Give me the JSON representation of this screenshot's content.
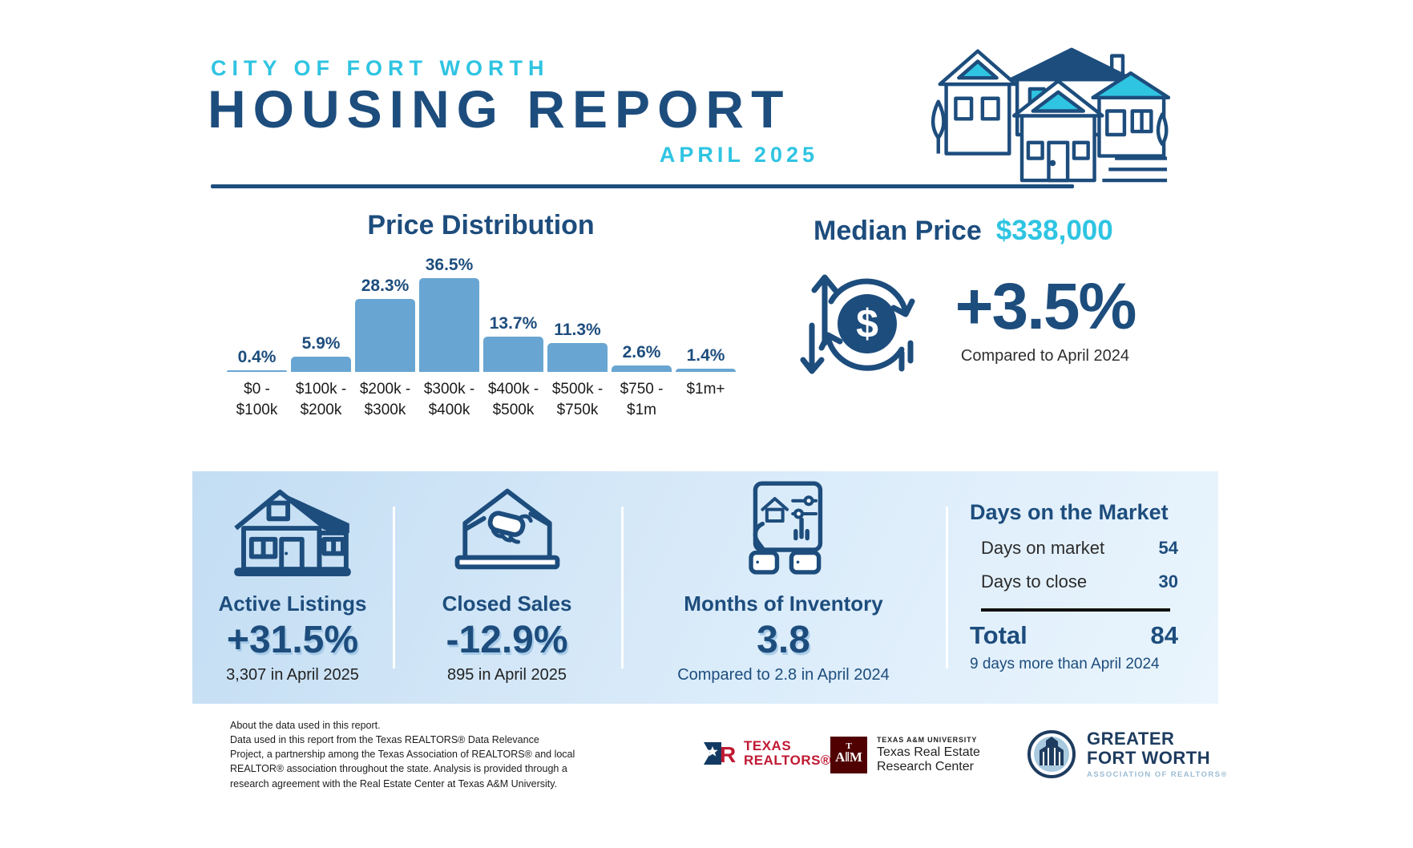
{
  "header": {
    "kicker": "CITY OF FORT WORTH",
    "title": "HOUSING REPORT",
    "subtitle": "APRIL 2025"
  },
  "colors": {
    "teal": "#2fc4e2",
    "navy": "#1d4d7d",
    "bar_blue": "#68a5d2",
    "band_gradient_start": "#c3ddf3",
    "band_gradient_end": "#eaf5fd"
  },
  "chart_data": {
    "type": "bar",
    "title": "Price Distribution",
    "categories": [
      "$0 - $100k",
      "$100k - $200k",
      "$200k - $300k",
      "$300k - $400k",
      "$400k - $500k",
      "$500k - $750k",
      "$750 - $1m",
      "$1m+"
    ],
    "categories_lines": [
      [
        "$0 -",
        "$100k"
      ],
      [
        "$100k -",
        "$200k"
      ],
      [
        "$200k -",
        "$300k"
      ],
      [
        "$300k -",
        "$400k"
      ],
      [
        "$400k -",
        "$500k"
      ],
      [
        "$500k -",
        "$750k"
      ],
      [
        "$750 -",
        "$1m"
      ],
      [
        "$1m+"
      ]
    ],
    "values": [
      0.4,
      5.9,
      28.3,
      36.5,
      13.7,
      11.3,
      2.6,
      1.4
    ],
    "unit": "%",
    "xlabel": "",
    "ylabel": "",
    "ylim": [
      0,
      40
    ],
    "grid": false,
    "legend": "none"
  },
  "median": {
    "label": "Median Price",
    "value": "$338,000",
    "change": "+3.5%",
    "caption": "Compared to April 2024"
  },
  "stats": [
    {
      "icon": "house-icon",
      "label": "Active Listings",
      "value": "+31.5%",
      "caption": "3,307 in April 2025"
    },
    {
      "icon": "handshake-icon",
      "label": "Closed Sales",
      "value": "-12.9%",
      "caption": "895 in April 2025"
    },
    {
      "icon": "tablet-icon",
      "label": "Months of Inventory",
      "value": "3.8",
      "caption": "Compared to 2.8 in April 2024"
    }
  ],
  "days": {
    "title": "Days on the Market",
    "rows": [
      {
        "label": "Days on market",
        "value": "54"
      },
      {
        "label": "Days to close",
        "value": "30"
      }
    ],
    "total_label": "Total",
    "total_value": "84",
    "caption": "9 days more than April 2024"
  },
  "footer": {
    "about_lines": [
      "About the data used in this report.",
      "Data used in this report from the Texas REALTORS® Data Relevance",
      "Project, a partnership among the Texas Association of REALTORS® and local",
      "REALTOR® association throughout the state. Analysis is provided through a",
      "research agreement with the Real Estate Center at Texas A&M University."
    ],
    "logos": {
      "texas_realtors": {
        "line1": "TEXAS",
        "line2": "REALTORS®"
      },
      "tamu": {
        "line1": "TEXAS A&M UNIVERSITY",
        "line2": "Texas Real Estate",
        "line3": "Research Center"
      },
      "gfw": {
        "line1": "GREATER",
        "line2": "FORT WORTH",
        "line3": "ASSOCIATION OF REALTORS®"
      }
    }
  }
}
